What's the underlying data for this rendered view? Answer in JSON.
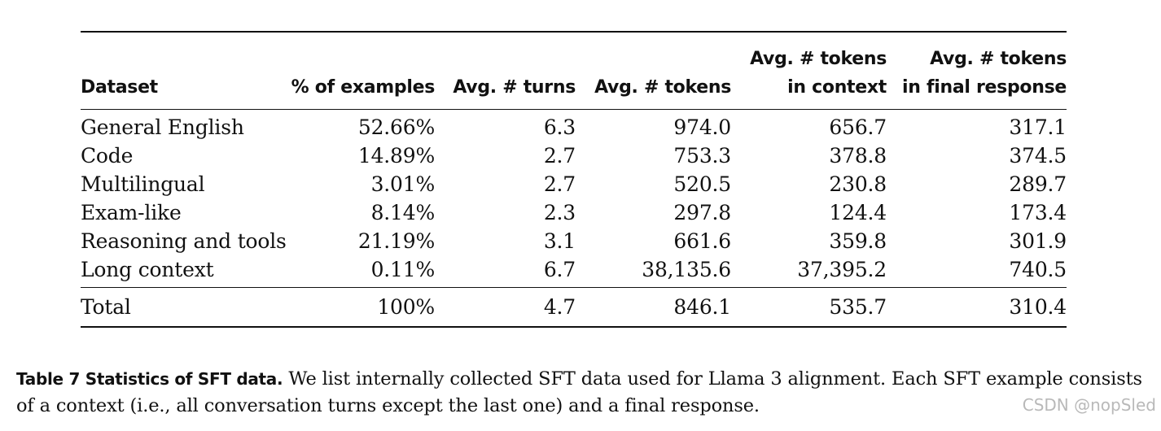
{
  "table": {
    "headers": [
      {
        "lines": [
          "Dataset"
        ]
      },
      {
        "lines": [
          "% of examples"
        ]
      },
      {
        "lines": [
          "Avg. # turns"
        ]
      },
      {
        "lines": [
          "Avg. # tokens"
        ]
      },
      {
        "lines": [
          "Avg. # tokens",
          "in context"
        ]
      },
      {
        "lines": [
          "Avg. # tokens",
          "in final response"
        ]
      }
    ],
    "rows": [
      [
        "General English",
        "52.66%",
        "6.3",
        "974.0",
        "656.7",
        "317.1"
      ],
      [
        "Code",
        "14.89%",
        "2.7",
        "753.3",
        "378.8",
        "374.5"
      ],
      [
        "Multilingual",
        "3.01%",
        "2.7",
        "520.5",
        "230.8",
        "289.7"
      ],
      [
        "Exam-like",
        "8.14%",
        "2.3",
        "297.8",
        "124.4",
        "173.4"
      ],
      [
        "Reasoning and tools",
        "21.19%",
        "3.1",
        "661.6",
        "359.8",
        "301.9"
      ],
      [
        "Long context",
        "0.11%",
        "6.7",
        "38,135.6",
        "37,395.2",
        "740.5"
      ]
    ],
    "total": [
      "Total",
      "100%",
      "4.7",
      "846.1",
      "535.7",
      "310.4"
    ]
  },
  "caption": {
    "label": "Table 7  Statistics of SFT data.",
    "text": " We list internally collected SFT data used for Llama 3 alignment. Each SFT example consists of a context (i.e., all conversation turns except the last one) and a final response."
  },
  "watermark": "CSDN @nopSled"
}
